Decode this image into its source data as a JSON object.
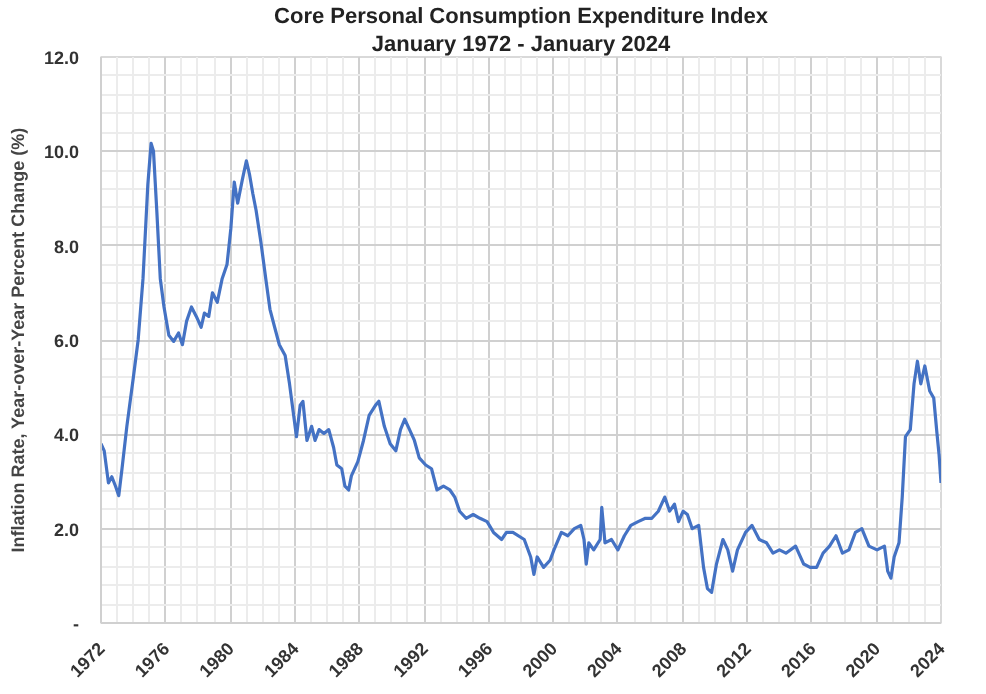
{
  "chart_data": {
    "type": "line",
    "title": "Core Personal Consumption Expenditure Index",
    "subtitle": "January 1972 - January 2024",
    "ylabel": "Inflation Rate, Year-over-Year Percent Change (%)",
    "xlim": [
      1972,
      2024
    ],
    "xticks": [
      {
        "value": 1972,
        "label": "1972"
      },
      {
        "value": 1976,
        "label": "1976"
      },
      {
        "value": 1980,
        "label": "1980"
      },
      {
        "value": 1984,
        "label": "1984"
      },
      {
        "value": 1988,
        "label": "1988"
      },
      {
        "value": 1992,
        "label": "1992"
      },
      {
        "value": 1996,
        "label": "1996"
      },
      {
        "value": 2000,
        "label": "2000"
      },
      {
        "value": 2004,
        "label": "2004"
      },
      {
        "value": 2008,
        "label": "2008"
      },
      {
        "value": 2012,
        "label": "2012"
      },
      {
        "value": 2016,
        "label": "2016"
      },
      {
        "value": 2020,
        "label": "2020"
      },
      {
        "value": 2024,
        "label": "2024"
      }
    ],
    "ylim": [
      0,
      12
    ],
    "yticks": [
      {
        "value": 0,
        "label": "-"
      },
      {
        "value": 2,
        "label": "2.0"
      },
      {
        "value": 4,
        "label": "4.0"
      },
      {
        "value": 6,
        "label": "6.0"
      },
      {
        "value": 8,
        "label": "8.0"
      },
      {
        "value": 10,
        "label": "10.0"
      },
      {
        "value": 12,
        "label": "12.0"
      }
    ],
    "grid": true,
    "marker": "none",
    "line_style": "solid",
    "x": [
      1972.0,
      1972.2,
      1972.46,
      1972.67,
      1972.9,
      1973.1,
      1973.3,
      1973.6,
      1974.0,
      1974.3,
      1974.6,
      1974.9,
      1975.1,
      1975.25,
      1975.46,
      1975.67,
      1975.9,
      1976.2,
      1976.5,
      1976.8,
      1977.04,
      1977.3,
      1977.6,
      1977.9,
      1978.2,
      1978.4,
      1978.67,
      1978.9,
      1979.2,
      1979.5,
      1979.8,
      1980.04,
      1980.25,
      1980.46,
      1980.75,
      1981.0,
      1981.2,
      1981.4,
      1981.6,
      1981.9,
      1982.2,
      1982.46,
      1982.75,
      1983.04,
      1983.4,
      1983.67,
      1983.9,
      1984.1,
      1984.33,
      1984.5,
      1984.75,
      1985.04,
      1985.25,
      1985.5,
      1985.8,
      1986.1,
      1986.4,
      1986.6,
      1986.9,
      1987.1,
      1987.33,
      1987.5,
      1987.9,
      1988.25,
      1988.6,
      1989.0,
      1989.2,
      1989.54,
      1989.9,
      1990.25,
      1990.54,
      1990.8,
      1991.1,
      1991.4,
      1991.7,
      1992.1,
      1992.46,
      1992.8,
      1993.2,
      1993.6,
      1993.9,
      1994.2,
      1994.6,
      1995.04,
      1995.46,
      1995.9,
      1996.3,
      1996.8,
      1997.1,
      1997.5,
      1998.2,
      1998.6,
      1998.8,
      1999.0,
      1999.4,
      1999.8,
      2000.04,
      2000.5,
      2000.9,
      2001.3,
      2001.7,
      2001.9,
      2002.04,
      2002.2,
      2002.5,
      2002.9,
      2003.0,
      2003.2,
      2003.6,
      2004.0,
      2004.4,
      2004.8,
      2005.25,
      2005.7,
      2006.1,
      2006.5,
      2006.9,
      2007.2,
      2007.5,
      2007.75,
      2008.04,
      2008.3,
      2008.6,
      2009.0,
      2009.3,
      2009.54,
      2009.8,
      2010.1,
      2010.5,
      2010.8,
      2011.1,
      2011.4,
      2011.9,
      2012.3,
      2012.75,
      2013.2,
      2013.6,
      2014.0,
      2014.4,
      2015.0,
      2015.5,
      2015.9,
      2016.3,
      2016.7,
      2017.1,
      2017.5,
      2017.9,
      2018.3,
      2018.7,
      2019.1,
      2019.54,
      2020.04,
      2020.5,
      2020.7,
      2020.9,
      2021.1,
      2021.4,
      2021.6,
      2021.8,
      2022.1,
      2022.33,
      2022.54,
      2022.75,
      2023.0,
      2023.3,
      2023.55,
      2023.75,
      2023.88,
      2024.0
    ],
    "series": [
      {
        "color": "#4472c4",
        "values": [
          3.8,
          3.65,
          2.97,
          3.1,
          2.9,
          2.7,
          3.27,
          4.17,
          5.2,
          6.0,
          7.3,
          9.3,
          10.17,
          10.0,
          8.7,
          7.3,
          6.7,
          6.1,
          5.97,
          6.15,
          5.9,
          6.4,
          6.7,
          6.5,
          6.27,
          6.57,
          6.5,
          7.0,
          6.8,
          7.3,
          7.6,
          8.37,
          9.35,
          8.9,
          9.4,
          9.8,
          9.5,
          9.1,
          8.75,
          8.07,
          7.3,
          6.65,
          6.27,
          5.9,
          5.67,
          5.07,
          4.47,
          3.95,
          4.62,
          4.7,
          3.87,
          4.17,
          3.87,
          4.1,
          4.02,
          4.1,
          3.72,
          3.35,
          3.27,
          2.9,
          2.82,
          3.12,
          3.42,
          3.87,
          4.4,
          4.62,
          4.7,
          4.17,
          3.8,
          3.65,
          4.1,
          4.32,
          4.1,
          3.87,
          3.5,
          3.35,
          3.27,
          2.82,
          2.9,
          2.82,
          2.67,
          2.37,
          2.22,
          2.3,
          2.22,
          2.15,
          1.92,
          1.77,
          1.92,
          1.92,
          1.77,
          1.4,
          1.03,
          1.4,
          1.18,
          1.33,
          1.55,
          1.92,
          1.85,
          2.0,
          2.07,
          1.77,
          1.25,
          1.7,
          1.55,
          1.77,
          2.45,
          1.7,
          1.77,
          1.55,
          1.85,
          2.07,
          2.15,
          2.22,
          2.22,
          2.37,
          2.67,
          2.37,
          2.52,
          2.15,
          2.37,
          2.3,
          2.0,
          2.07,
          1.18,
          0.73,
          0.65,
          1.25,
          1.77,
          1.55,
          1.1,
          1.55,
          1.92,
          2.07,
          1.77,
          1.7,
          1.48,
          1.55,
          1.48,
          1.63,
          1.25,
          1.18,
          1.18,
          1.48,
          1.63,
          1.85,
          1.48,
          1.55,
          1.92,
          2.0,
          1.63,
          1.55,
          1.63,
          1.1,
          0.95,
          1.4,
          1.7,
          2.67,
          3.95,
          4.1,
          5.07,
          5.55,
          5.07,
          5.45,
          4.92,
          4.77,
          4.02,
          3.57,
          2.97
        ]
      }
    ]
  }
}
